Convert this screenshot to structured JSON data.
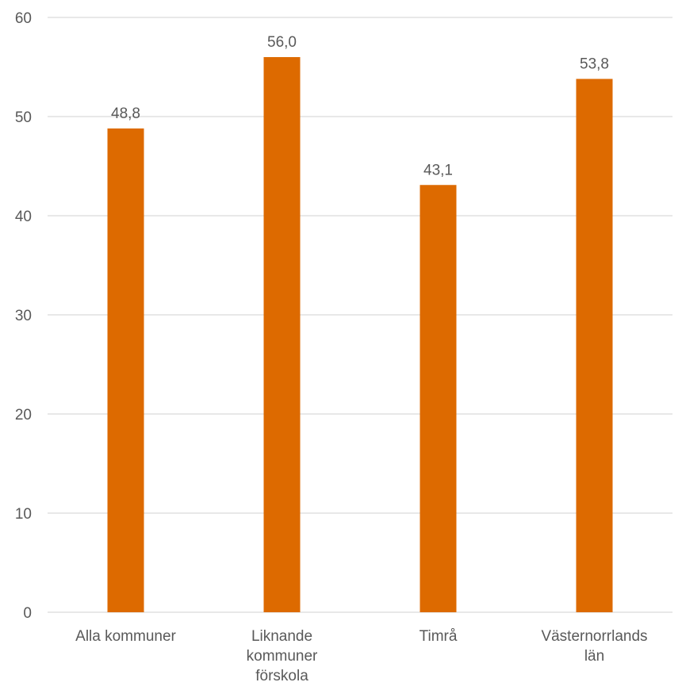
{
  "chart_data": {
    "type": "bar",
    "title": "",
    "xlabel": "",
    "ylabel": "",
    "categories": [
      [
        "Alla kommuner"
      ],
      [
        "Liknande",
        "kommuner",
        "förskola"
      ],
      [
        "Timrå"
      ],
      [
        "Västernorrlands",
        "län"
      ]
    ],
    "values": [
      48.8,
      56.0,
      43.1,
      53.8
    ],
    "data_labels": [
      "48,8",
      "56,0",
      "43,1",
      "53,8"
    ],
    "ylim": [
      0,
      60
    ],
    "yticks": [
      0,
      10,
      20,
      30,
      40,
      50,
      60
    ],
    "grid": true,
    "legend": "none",
    "bar_color": "#dd6a00"
  }
}
